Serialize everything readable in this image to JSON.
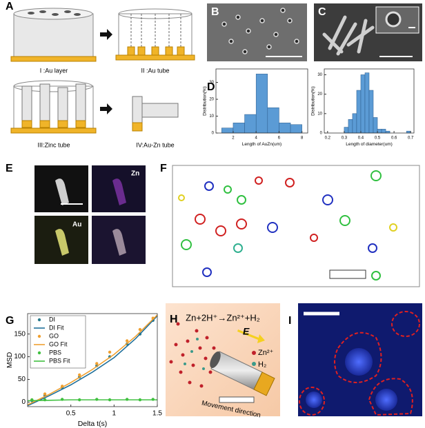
{
  "figure": {
    "panel_labels": [
      "A",
      "B",
      "C",
      "D",
      "E",
      "F",
      "G",
      "H",
      "I"
    ],
    "schematic_steps": [
      "I :Au layer",
      "II :Au tube",
      "III:Zinc tube",
      "IV:Au-Zn tube"
    ],
    "fluorescence_channels": [
      "Zn",
      "Au"
    ],
    "reaction": {
      "equation": "Zn+2H⁺→Zn²⁺+H₂",
      "field": "E",
      "ion": "Zn²⁺",
      "gas": "H₂",
      "direction": "Movement direction"
    }
  },
  "chart_data": [
    {
      "type": "histogram",
      "xlabel": "Length of AuZn(um)",
      "ylabel": "Distribution(%)",
      "bins": [
        1,
        2,
        3,
        4,
        5,
        6,
        7,
        8
      ],
      "values": [
        3,
        6,
        11,
        35,
        15,
        6,
        5
      ],
      "color": "#5b9bd5",
      "xlim": [
        0.5,
        8.5
      ],
      "xticks": [
        2,
        4,
        6,
        8
      ],
      "ylim": [
        0,
        38
      ],
      "yticks": [
        0,
        10,
        20,
        30
      ]
    },
    {
      "type": "histogram",
      "xlabel": "Length of diameter(um)",
      "ylabel": "Distribution(%)",
      "bins": [
        0.3,
        0.325,
        0.35,
        0.375,
        0.4,
        0.425,
        0.45,
        0.475,
        0.5,
        0.525,
        0.55,
        0.575,
        0.6,
        0.625,
        0.65,
        0.675,
        0.7
      ],
      "values": [
        3,
        7,
        10,
        22,
        30,
        31,
        22,
        8,
        2,
        2,
        1,
        0,
        0,
        0,
        0,
        1
      ],
      "color": "#5b9bd5",
      "xlim": [
        0.18,
        0.72
      ],
      "xticks": [
        0.2,
        0.3,
        0.4,
        0.5,
        0.6,
        0.7
      ],
      "ylim": [
        0,
        33
      ],
      "yticks": [
        0,
        10,
        20,
        30
      ]
    },
    {
      "type": "line",
      "xlabel": "Delta t(s)",
      "ylabel": "MSD",
      "legend": "upper-left",
      "xlim": [
        0,
        1.5
      ],
      "xticks": [
        0.5,
        1,
        1.5
      ],
      "ylim": [
        -10,
        195
      ],
      "yticks": [
        0,
        50,
        100,
        150
      ],
      "series": [
        {
          "name": "DI",
          "style": "points",
          "color": "#2a7b8c",
          "x": [
            0.05,
            0.2,
            0.4,
            0.6,
            0.8,
            0.95,
            1.15,
            1.3,
            1.45
          ],
          "values": [
            3,
            15,
            32,
            55,
            80,
            100,
            128,
            150,
            180
          ]
        },
        {
          "name": "DI Fit",
          "style": "line",
          "color": "#1f6f9a",
          "x": [
            0,
            0.25,
            0.5,
            0.75,
            1,
            1.25,
            1.5
          ],
          "values": [
            -8,
            14,
            38,
            66,
            98,
            140,
            190
          ]
        },
        {
          "name": "GO",
          "style": "points",
          "color": "#f0a030",
          "x": [
            0.05,
            0.2,
            0.4,
            0.6,
            0.8,
            0.95,
            1.15,
            1.3,
            1.45
          ],
          "values": [
            5,
            18,
            35,
            60,
            85,
            110,
            135,
            160,
            185
          ]
        },
        {
          "name": "GO Fit",
          "style": "line",
          "color": "#f0a030",
          "x": [
            0,
            0.25,
            0.5,
            0.75,
            1,
            1.25,
            1.5
          ],
          "values": [
            -6,
            17,
            43,
            72,
            105,
            145,
            192
          ]
        },
        {
          "name": "PBS",
          "style": "points",
          "color": "#40c040",
          "x": [
            0.05,
            0.2,
            0.4,
            0.6,
            0.8,
            0.95,
            1.15,
            1.3,
            1.45
          ],
          "values": [
            5,
            5,
            6,
            5,
            6,
            5,
            6,
            5,
            6
          ]
        },
        {
          "name": "PBS Fit",
          "style": "line",
          "color": "#40c040",
          "x": [
            0,
            0.25,
            0.5,
            0.75,
            1,
            1.25,
            1.5
          ],
          "values": [
            3,
            4,
            5,
            5,
            5,
            5,
            5
          ]
        }
      ]
    }
  ]
}
